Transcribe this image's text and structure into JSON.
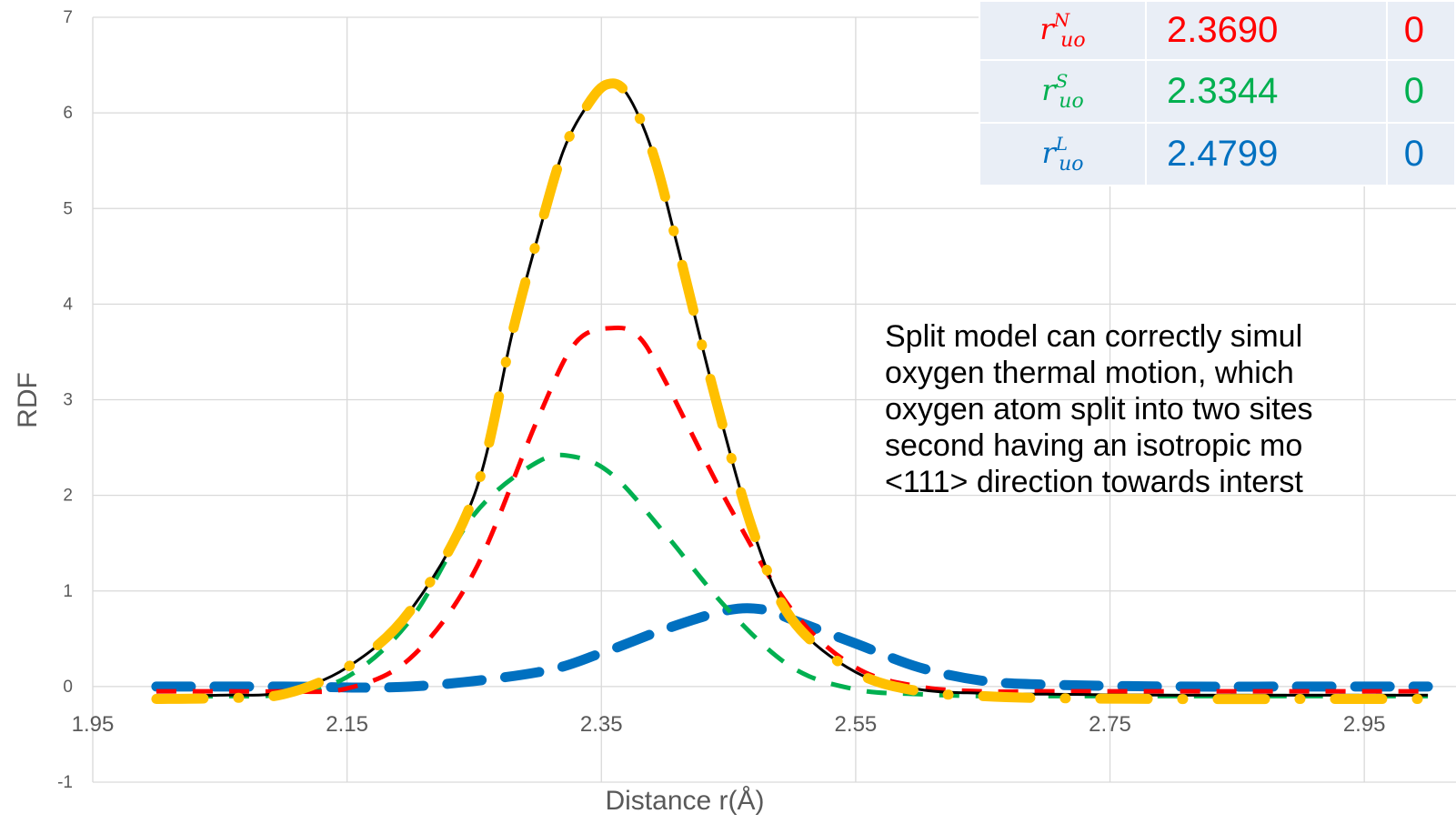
{
  "chart_data": {
    "type": "line",
    "title": "",
    "xlabel": "Distance r(Å)",
    "ylabel": "RDF",
    "xlim": [
      1.95,
      3.05
    ],
    "ylim": [
      -1,
      7
    ],
    "x_ticks": [
      "1.95",
      "2.15",
      "2.35",
      "2.55",
      "2.75",
      "2.95"
    ],
    "y_ticks": [
      "-1",
      "0",
      "1",
      "2",
      "3",
      "4",
      "5",
      "6",
      "7"
    ],
    "grid": true,
    "legend": "none",
    "series": [
      {
        "key": "total",
        "color": "#000000",
        "style": "solid",
        "x": [
          2.0,
          2.05,
          2.1,
          2.15,
          2.2,
          2.25,
          2.28,
          2.3,
          2.32,
          2.34,
          2.355,
          2.37,
          2.39,
          2.41,
          2.44,
          2.47,
          2.5,
          2.55,
          2.6,
          2.65,
          2.7,
          2.8,
          2.9,
          3.0
        ],
        "y": [
          -0.1,
          -0.09,
          -0.06,
          0.2,
          0.8,
          2.0,
          3.7,
          4.7,
          5.6,
          6.1,
          6.3,
          6.2,
          5.6,
          4.6,
          3.0,
          1.6,
          0.7,
          0.15,
          -0.03,
          -0.07,
          -0.08,
          -0.09,
          -0.09,
          -0.09
        ]
      },
      {
        "key": "normal",
        "color": "#ff0000",
        "style": "dashed",
        "x": [
          2.0,
          2.05,
          2.1,
          2.15,
          2.2,
          2.25,
          2.3,
          2.33,
          2.36,
          2.38,
          2.4,
          2.45,
          2.5,
          2.55,
          2.6,
          2.65,
          2.7,
          2.8,
          2.9,
          3.0
        ],
        "y": [
          -0.05,
          -0.05,
          -0.05,
          -0.02,
          0.3,
          1.2,
          2.8,
          3.6,
          3.75,
          3.65,
          3.2,
          1.9,
          0.8,
          0.2,
          0.0,
          -0.05,
          -0.05,
          -0.05,
          -0.05,
          -0.05
        ]
      },
      {
        "key": "short",
        "color": "#00b050",
        "style": "dashed",
        "x": [
          2.0,
          2.05,
          2.1,
          2.15,
          2.2,
          2.25,
          2.3,
          2.33,
          2.36,
          2.4,
          2.45,
          2.5,
          2.55,
          2.6,
          2.65,
          2.7,
          2.8,
          2.9,
          3.0
        ],
        "y": [
          -0.1,
          -0.1,
          -0.08,
          0.1,
          0.7,
          1.8,
          2.35,
          2.4,
          2.2,
          1.6,
          0.8,
          0.2,
          -0.03,
          -0.08,
          -0.1,
          -0.1,
          -0.1,
          -0.1,
          -0.1
        ]
      },
      {
        "key": "long",
        "color": "#0070c0",
        "style": "dashed",
        "x": [
          2.0,
          2.1,
          2.2,
          2.3,
          2.35,
          2.4,
          2.45,
          2.48,
          2.5,
          2.55,
          2.6,
          2.65,
          2.7,
          2.8,
          2.9,
          3.0
        ],
        "y": [
          0.0,
          0.0,
          0.0,
          0.15,
          0.35,
          0.6,
          0.8,
          0.8,
          0.7,
          0.45,
          0.2,
          0.06,
          0.02,
          0.0,
          0.0,
          0.0
        ]
      },
      {
        "key": "sum",
        "color": "#ffc000",
        "style": "dash-dot",
        "x": [
          2.0,
          2.05,
          2.1,
          2.15,
          2.2,
          2.25,
          2.28,
          2.3,
          2.32,
          2.34,
          2.355,
          2.37,
          2.39,
          2.41,
          2.44,
          2.47,
          2.5,
          2.55,
          2.6,
          2.65,
          2.7,
          2.8,
          2.9,
          3.0
        ],
        "y": [
          -0.13,
          -0.12,
          -0.08,
          0.2,
          0.8,
          2.0,
          3.7,
          4.7,
          5.6,
          6.1,
          6.3,
          6.2,
          5.6,
          4.6,
          3.0,
          1.6,
          0.7,
          0.15,
          -0.05,
          -0.1,
          -0.12,
          -0.13,
          -0.13,
          -0.13
        ]
      }
    ]
  },
  "table": {
    "rows": [
      {
        "sym_base": "r",
        "sym_sup": "N",
        "sym_sub": "uo",
        "value": "2.3690",
        "extra": "0",
        "color": "#ff0000"
      },
      {
        "sym_base": "r",
        "sym_sup": "S",
        "sym_sub": "uo",
        "value": "2.3344",
        "extra": "0",
        "color": "#00b050"
      },
      {
        "sym_base": "r",
        "sym_sup": "L",
        "sym_sub": "uo",
        "value": "2.4799",
        "extra": "0",
        "color": "#0070c0"
      }
    ]
  },
  "annotation": {
    "lines": [
      "Split model can correctly simul",
      "oxygen thermal motion, which",
      "oxygen atom split into two sites",
      "second having an isotropic mo",
      "<111> direction towards interst"
    ]
  }
}
